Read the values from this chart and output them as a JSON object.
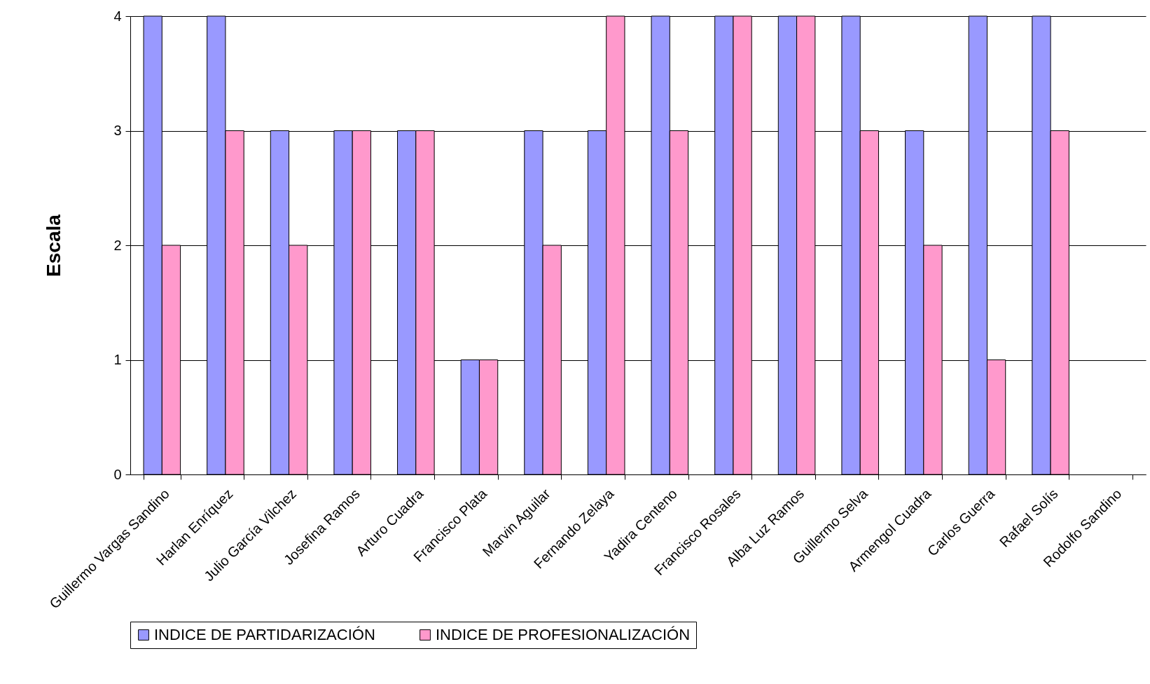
{
  "chart_data": {
    "type": "bar",
    "ylabel": "Escala",
    "categories": [
      "Guillermo Vargas Sandino",
      "Harlan Enríquez",
      "Julio García Vilchez",
      "Josefina Ramos",
      "Arturo Cuadra",
      "Francisco Plata",
      "Marvin Aguilar",
      "Fernando Zelaya",
      "Yadira Centeno",
      "Francisco Rosales",
      "Alba Luz Ramos",
      "Guillermo Selva",
      "Armengol Cuadra",
      "Carlos Guerra",
      "Rafael Solís",
      "Rodolfo Sandino"
    ],
    "series": [
      {
        "name": "INDICE DE PARTIDARIZACIÓN",
        "color": "#9999ff",
        "values": [
          4,
          4,
          3,
          3,
          3,
          1,
          3,
          3,
          4,
          4,
          4,
          4,
          3,
          4,
          4,
          null
        ]
      },
      {
        "name": "INDICE DE PROFESIONALIZACIÓN",
        "color": "#ff99cc",
        "values": [
          2,
          3,
          2,
          3,
          3,
          1,
          2,
          4,
          3,
          4,
          4,
          3,
          2,
          1,
          3,
          null
        ]
      }
    ],
    "ylim": [
      0,
      4
    ],
    "yticks": [
      0,
      1,
      2,
      3,
      4
    ],
    "grid": "y",
    "legend": "bottom"
  }
}
